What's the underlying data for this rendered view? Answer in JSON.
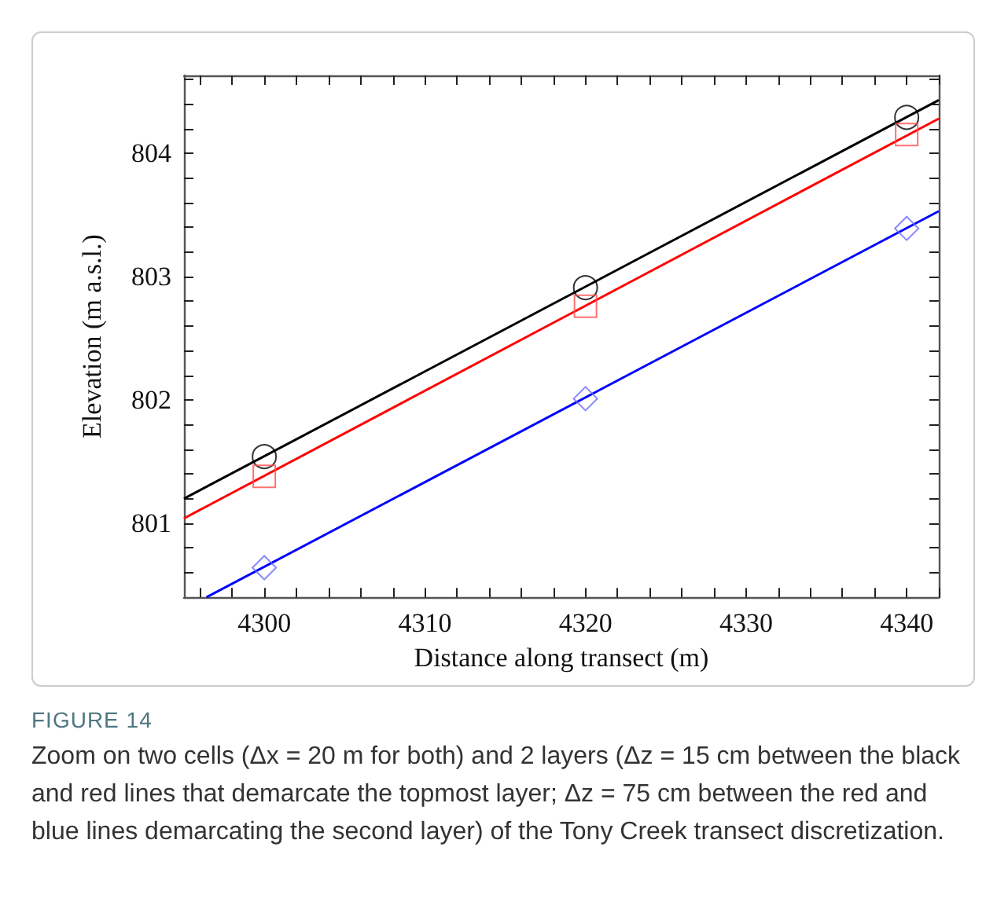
{
  "chart_data": {
    "type": "line",
    "xlabel": "Distance along transect (m)",
    "ylabel": "Elevation (m a.s.l.)",
    "xlim": [
      4295,
      4342
    ],
    "ylim": [
      800.4,
      804.63
    ],
    "xticks": [
      {
        "value": 4296,
        "label": null
      },
      {
        "value": 4298,
        "label": null
      },
      4300,
      {
        "value": 4302,
        "label": null
      },
      {
        "value": 4304,
        "label": null
      },
      {
        "value": 4306,
        "label": null
      },
      {
        "value": 4308,
        "label": null
      },
      4310,
      {
        "value": 4312,
        "label": null
      },
      {
        "value": 4314,
        "label": null
      },
      {
        "value": 4316,
        "label": null
      },
      {
        "value": 4318,
        "label": null
      },
      4320,
      {
        "value": 4322,
        "label": null
      },
      {
        "value": 4324,
        "label": null
      },
      {
        "value": 4326,
        "label": null
      },
      {
        "value": 4328,
        "label": null
      },
      4330,
      {
        "value": 4332,
        "label": null
      },
      {
        "value": 4334,
        "label": null
      },
      {
        "value": 4336,
        "label": null
      },
      {
        "value": 4338,
        "label": null
      },
      4340,
      {
        "value": 4342,
        "label": null
      }
    ],
    "yticks": [
      {
        "value": 800.6,
        "label": null
      },
      {
        "value": 800.8,
        "label": null
      },
      801,
      {
        "value": 801.2,
        "label": null
      },
      {
        "value": 801.4,
        "label": null
      },
      {
        "value": 801.6,
        "label": null
      },
      {
        "value": 801.8,
        "label": null
      },
      802,
      {
        "value": 802.2,
        "label": null
      },
      {
        "value": 802.4,
        "label": null
      },
      {
        "value": 802.6,
        "label": null
      },
      {
        "value": 802.8,
        "label": null
      },
      803,
      {
        "value": 803.2,
        "label": null
      },
      {
        "value": 803.4,
        "label": null
      },
      {
        "value": 803.6,
        "label": null
      },
      {
        "value": 803.8,
        "label": null
      },
      804,
      {
        "value": 804.2,
        "label": null
      },
      {
        "value": 804.4,
        "label": null
      },
      {
        "value": 804.6,
        "label": null
      }
    ],
    "grid": false,
    "series": [
      {
        "color": "#000000",
        "x": [
          4295,
          4342
        ],
        "values": [
          801.2,
          804.43
        ],
        "marker": "none"
      },
      {
        "color": "#ff0000",
        "x": [
          4295,
          4342
        ],
        "values": [
          801.04,
          804.28
        ],
        "marker": "none"
      },
      {
        "color": "#0000ff",
        "x": [
          4296.4,
          4342
        ],
        "values": [
          800.4,
          803.53
        ],
        "marker": "none"
      },
      {
        "type": "scatter",
        "color": "#000000",
        "x": [
          4300,
          4320,
          4340
        ],
        "values": [
          801.54,
          802.91,
          804.29
        ],
        "marker": "circle"
      },
      {
        "type": "scatter",
        "color": "#ff4d4d",
        "x": [
          4300,
          4320,
          4340
        ],
        "values": [
          801.38,
          802.76,
          804.15
        ],
        "marker": "square"
      },
      {
        "type": "scatter",
        "color": "#6b6bff",
        "x": [
          4300,
          4320,
          4340
        ],
        "values": [
          800.64,
          802.01,
          803.39
        ],
        "marker": "diamond"
      }
    ],
    "annotations": [
      "FIGURE 14",
      "Zoom on two cells (Δx = 20 m for both) and 2 layers (Δz = 15 cm between the black and red lines that demarcate the topmost layer; Δz = 75 cm between the red and blue lines demarcating the second layer) of the Tony Creek transect discretization."
    ]
  }
}
